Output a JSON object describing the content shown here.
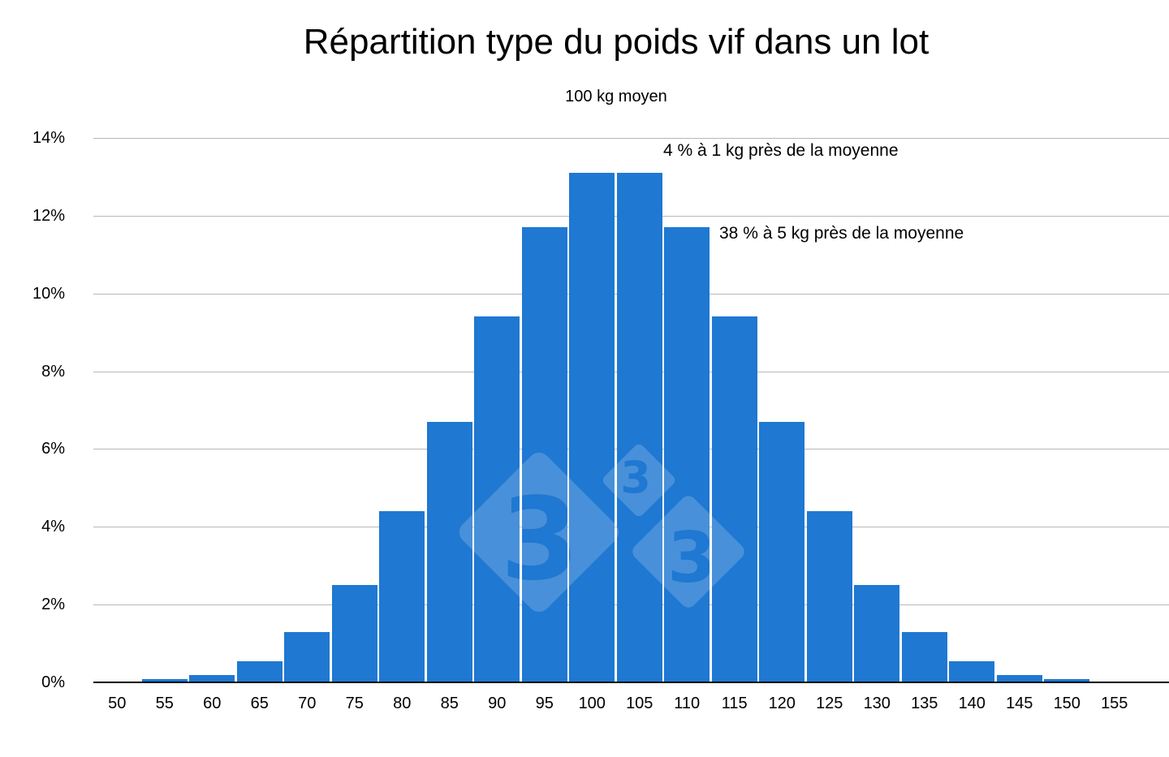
{
  "page": {
    "background": "#ffffff"
  },
  "title": "Répartition type du poids vif dans un lot",
  "subtitle": "100 kg moyen",
  "annotations": [
    {
      "text": "4 % à 1 kg près de la moyenne"
    },
    {
      "text": "38 % à 5 kg près de la moyenne"
    }
  ],
  "watermark": {
    "glyph": "3"
  },
  "colors": {
    "bar": "#1f78d1",
    "gridline": "#b7b7b7",
    "axis": "#000000",
    "text": "#000000",
    "watermark": "#ffffff"
  },
  "chart_data": {
    "type": "bar",
    "title": "Répartition type du poids vif dans un lot",
    "subtitle": "100 kg moyen",
    "categories": [
      "50",
      "55",
      "60",
      "65",
      "70",
      "75",
      "80",
      "85",
      "90",
      "95",
      "100",
      "105",
      "110",
      "115",
      "120",
      "125",
      "130",
      "135",
      "140",
      "145",
      "150",
      "155"
    ],
    "values": [
      0,
      0.08,
      0.18,
      0.55,
      1.3,
      2.5,
      4.4,
      6.7,
      9.4,
      11.7,
      13.1,
      13.1,
      11.7,
      9.4,
      6.7,
      4.4,
      2.5,
      1.3,
      0.55,
      0.18,
      0.08,
      0
    ],
    "xlabel": "",
    "ylabel": "",
    "ylim": [
      0,
      14
    ],
    "yticks": [
      "0%",
      "2%",
      "4%",
      "6%",
      "8%",
      "10%",
      "12%",
      "14%"
    ],
    "ytick_step": 2,
    "grid": true,
    "legend": false,
    "annotations": [
      "4 % à 1 kg près de la moyenne",
      "38 % à 5 kg près de la moyenne"
    ]
  }
}
